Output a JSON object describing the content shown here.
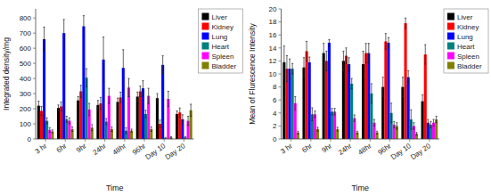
{
  "chart_data": [
    {
      "type": "bar",
      "xlabel": "Time",
      "ylabel": "Integrated density/mg",
      "categories": [
        "3 hr",
        "6hr",
        "9hr",
        "24hr",
        "48hr",
        "96hr",
        "Day 10",
        "Day 20"
      ],
      "ylim": [
        0,
        860
      ],
      "yticks": [
        0,
        100,
        200,
        300,
        400,
        500,
        600,
        700,
        800
      ],
      "grid": false,
      "legend": "upper right",
      "series": [
        {
          "name": "Liver",
          "color": "#000000",
          "values": [
            220,
            205,
            255,
            225,
            245,
            280,
            270,
            165
          ],
          "errors": [
            30,
            20,
            25,
            30,
            25,
            30,
            30,
            20
          ]
        },
        {
          "name": "Kidney",
          "color": "#ff0000",
          "values": [
            185,
            215,
            315,
            235,
            275,
            315,
            100,
            175
          ],
          "errors": [
            30,
            30,
            40,
            40,
            35,
            35,
            25,
            30
          ]
        },
        {
          "name": "Lung",
          "color": "#0000ff",
          "values": [
            660,
            700,
            745,
            525,
            470,
            335,
            490,
            130
          ],
          "errors": [
            80,
            90,
            70,
            150,
            120,
            50,
            60,
            30
          ]
        },
        {
          "name": "Heart",
          "color": "#008080",
          "values": [
            120,
            130,
            405,
            115,
            55,
            165,
            5,
            10
          ],
          "errors": [
            20,
            20,
            60,
            20,
            20,
            25,
            5,
            5
          ]
        },
        {
          "name": "Spleen",
          "color": "#ff00ff",
          "values": [
            60,
            120,
            195,
            285,
            340,
            285,
            265,
            120
          ],
          "errors": [
            15,
            20,
            40,
            50,
            60,
            50,
            50,
            30
          ]
        },
        {
          "name": "Bladder",
          "color": "#808000",
          "values": [
            50,
            65,
            75,
            65,
            55,
            65,
            10,
            190
          ],
          "errors": [
            10,
            15,
            20,
            15,
            10,
            15,
            5,
            40
          ]
        }
      ]
    },
    {
      "type": "bar",
      "xlabel": "Time",
      "ylabel": "Mean of Flurescence Intensity",
      "categories": [
        "3 hr",
        "6hr",
        "9hr",
        "24hr",
        "48hr",
        "96hr",
        "Day 10",
        "Day 20"
      ],
      "ylim": [
        0,
        20
      ],
      "yticks": [
        0,
        2,
        4,
        6,
        8,
        10,
        12,
        14,
        16,
        18,
        20
      ],
      "grid": false,
      "legend": "upper right",
      "series": [
        {
          "name": "Liver",
          "color": "#000000",
          "values": [
            11.8,
            11.0,
            13.2,
            12.0,
            11.5,
            8.0,
            8.0,
            5.8
          ],
          "errors": [
            2.5,
            1.5,
            1.5,
            1.5,
            2.0,
            1.5,
            1.5,
            1.0
          ]
        },
        {
          "name": "Kidney",
          "color": "#ff0000",
          "values": [
            10.8,
            13.5,
            12.0,
            12.8,
            13.2,
            15.0,
            17.8,
            13.0
          ],
          "errors": [
            2.0,
            1.5,
            1.5,
            1.2,
            1.5,
            1.2,
            0.8,
            1.5
          ]
        },
        {
          "name": "Lung",
          "color": "#0000ff",
          "values": [
            10.8,
            11.8,
            14.8,
            11.5,
            13.2,
            14.8,
            9.5,
            2.5
          ],
          "errors": [
            1.5,
            0.8,
            0.5,
            1.0,
            1.5,
            0.8,
            1.0,
            0.5
          ]
        },
        {
          "name": "Heart",
          "color": "#008080",
          "values": [
            10.8,
            3.8,
            4.2,
            8.5,
            7.0,
            4.0,
            3.0,
            2.2
          ],
          "errors": [
            0.8,
            1.0,
            0.5,
            0.8,
            1.5,
            1.5,
            1.5,
            0.5
          ]
        },
        {
          "name": "Spleen",
          "color": "#ff00ff",
          "values": [
            5.5,
            3.8,
            4.2,
            3.2,
            2.5,
            2.2,
            2.0,
            2.5
          ],
          "errors": [
            1.0,
            0.5,
            0.5,
            0.5,
            0.5,
            0.5,
            0.5,
            0.5
          ]
        },
        {
          "name": "Bladder",
          "color": "#808000",
          "values": [
            1.0,
            1.5,
            1.5,
            1.0,
            1.0,
            2.0,
            0.8,
            3.0
          ],
          "errors": [
            0.2,
            0.3,
            0.3,
            0.2,
            0.2,
            0.5,
            0.2,
            0.5
          ]
        }
      ]
    }
  ]
}
